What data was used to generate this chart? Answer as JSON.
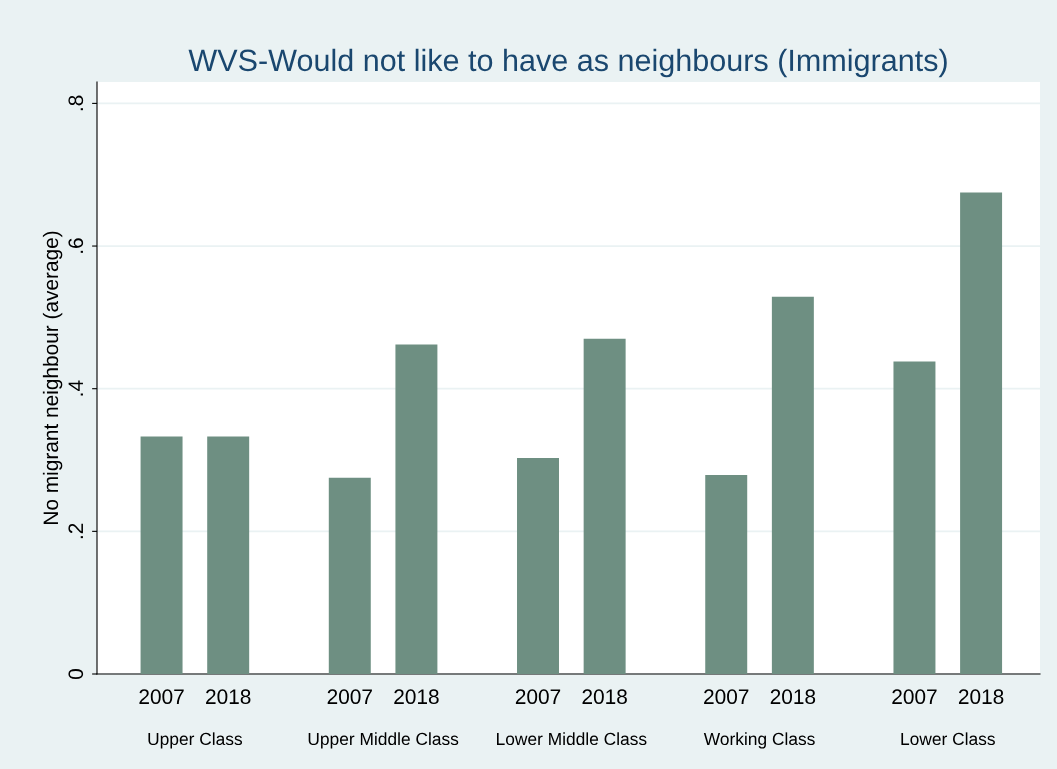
{
  "chart_data": {
    "type": "bar",
    "title": "WVS-Would not like to have as neighbours (Immigrants)",
    "ylabel": "No migrant neighbour (average)",
    "categories": [
      "Upper Class",
      "Upper Middle Class",
      "Lower Middle Class",
      "Working Class",
      "Lower Class"
    ],
    "series": [
      {
        "name": "2007",
        "color": "#6e8f82",
        "values": [
          0.333,
          0.275,
          0.303,
          0.279,
          0.438
        ]
      },
      {
        "name": "2018",
        "color": "#6e8f82",
        "values": [
          0.333,
          0.462,
          0.47,
          0.529,
          0.675
        ]
      }
    ],
    "ylim": [
      0,
      0.83
    ],
    "yticks": [
      0,
      {
        "value": 0.2,
        "label": ".2"
      },
      {
        "value": 0.4,
        "label": ".4"
      },
      {
        "value": 0.6,
        "label": ".6"
      },
      {
        "value": 0.8,
        "label": ".8"
      }
    ],
    "grid": "y",
    "legend": false
  }
}
